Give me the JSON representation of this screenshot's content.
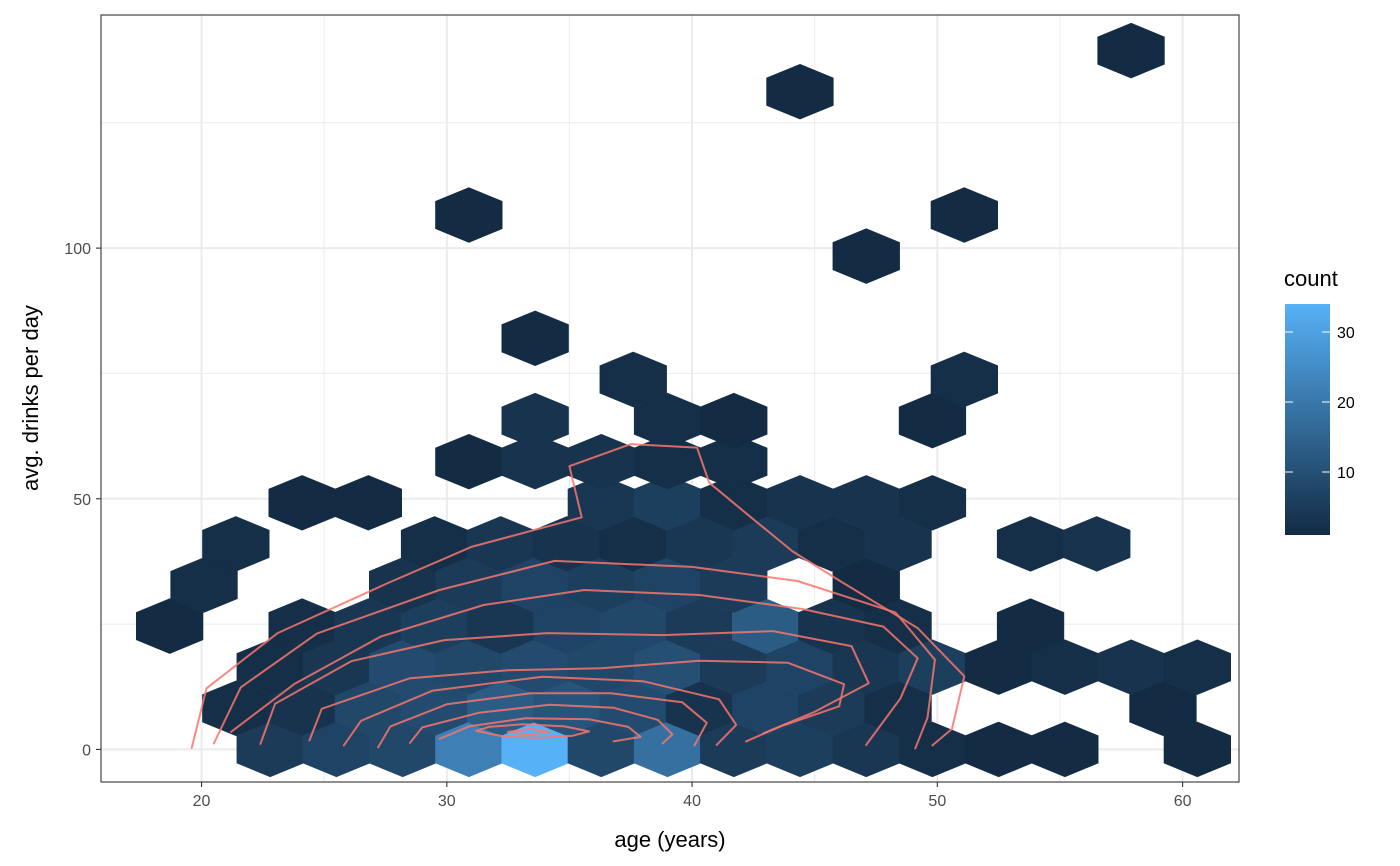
{
  "colors": {
    "background": "#ffffff",
    "grid": "#ebebeb",
    "panel_border": "#333333",
    "tick_text": "#4d4d4d",
    "contour": "#f8766d",
    "gradient_low": "#132b43",
    "gradient_high": "#56b1f7"
  },
  "chart_data": {
    "type": "hexbin",
    "title": "",
    "xlabel": "age (years)",
    "ylabel": "avg. drinks per day",
    "xlim": [
      15.9,
      62.3
    ],
    "ylim": [
      -6.5,
      146.5
    ],
    "x_ticks": [
      20,
      30,
      40,
      50,
      60
    ],
    "y_ticks": [
      0,
      50,
      100
    ],
    "grid": true,
    "hex_dx": 2.72,
    "hex_dy": 8.2,
    "legend": {
      "title": "count",
      "position": "right",
      "ticks": [
        10,
        20,
        30
      ],
      "min": 1,
      "max": 34
    },
    "bins": [
      {
        "x": 22.8,
        "y": 0,
        "count": 5
      },
      {
        "x": 25.5,
        "y": 0,
        "count": 7
      },
      {
        "x": 28.2,
        "y": 0,
        "count": 8
      },
      {
        "x": 30.9,
        "y": 0,
        "count": 22
      },
      {
        "x": 33.6,
        "y": 0,
        "count": 34
      },
      {
        "x": 36.3,
        "y": 0,
        "count": 8
      },
      {
        "x": 39.0,
        "y": 0,
        "count": 18
      },
      {
        "x": 41.7,
        "y": 0,
        "count": 5
      },
      {
        "x": 44.4,
        "y": 0,
        "count": 6
      },
      {
        "x": 47.1,
        "y": 0,
        "count": 4
      },
      {
        "x": 49.8,
        "y": 0,
        "count": 2
      },
      {
        "x": 52.5,
        "y": 0,
        "count": 1
      },
      {
        "x": 55.2,
        "y": 0,
        "count": 1
      },
      {
        "x": 60.6,
        "y": 0,
        "count": 1
      },
      {
        "x": 21.4,
        "y": 8.2,
        "count": 2
      },
      {
        "x": 24.1,
        "y": 8.2,
        "count": 3
      },
      {
        "x": 26.8,
        "y": 8.2,
        "count": 8
      },
      {
        "x": 29.5,
        "y": 8.2,
        "count": 9
      },
      {
        "x": 32.2,
        "y": 8.2,
        "count": 13
      },
      {
        "x": 34.9,
        "y": 8.2,
        "count": 11
      },
      {
        "x": 37.6,
        "y": 8.2,
        "count": 9
      },
      {
        "x": 40.3,
        "y": 8.2,
        "count": 3
      },
      {
        "x": 43.0,
        "y": 8.2,
        "count": 7
      },
      {
        "x": 45.7,
        "y": 8.2,
        "count": 5
      },
      {
        "x": 48.4,
        "y": 8.2,
        "count": 2
      },
      {
        "x": 59.2,
        "y": 8.2,
        "count": 1
      },
      {
        "x": 22.8,
        "y": 16.4,
        "count": 2
      },
      {
        "x": 25.5,
        "y": 16.4,
        "count": 4
      },
      {
        "x": 28.2,
        "y": 16.4,
        "count": 9
      },
      {
        "x": 30.9,
        "y": 16.4,
        "count": 8
      },
      {
        "x": 33.6,
        "y": 16.4,
        "count": 9
      },
      {
        "x": 36.3,
        "y": 16.4,
        "count": 8
      },
      {
        "x": 39.0,
        "y": 16.4,
        "count": 10
      },
      {
        "x": 41.7,
        "y": 16.4,
        "count": 5
      },
      {
        "x": 44.4,
        "y": 16.4,
        "count": 7
      },
      {
        "x": 47.1,
        "y": 16.4,
        "count": 4
      },
      {
        "x": 49.8,
        "y": 16.4,
        "count": 6
      },
      {
        "x": 52.5,
        "y": 16.4,
        "count": 1
      },
      {
        "x": 55.2,
        "y": 16.4,
        "count": 2
      },
      {
        "x": 57.9,
        "y": 16.4,
        "count": 3
      },
      {
        "x": 60.6,
        "y": 16.4,
        "count": 2
      },
      {
        "x": 18.7,
        "y": 24.6,
        "count": 1
      },
      {
        "x": 24.1,
        "y": 24.6,
        "count": 2
      },
      {
        "x": 26.8,
        "y": 24.6,
        "count": 4
      },
      {
        "x": 29.5,
        "y": 24.6,
        "count": 6
      },
      {
        "x": 32.2,
        "y": 24.6,
        "count": 4
      },
      {
        "x": 34.9,
        "y": 24.6,
        "count": 7
      },
      {
        "x": 37.6,
        "y": 24.6,
        "count": 8
      },
      {
        "x": 40.3,
        "y": 24.6,
        "count": 5
      },
      {
        "x": 43.0,
        "y": 24.6,
        "count": 13
      },
      {
        "x": 45.7,
        "y": 24.6,
        "count": 3
      },
      {
        "x": 48.4,
        "y": 24.6,
        "count": 2
      },
      {
        "x": 53.8,
        "y": 24.6,
        "count": 1
      },
      {
        "x": 20.1,
        "y": 32.8,
        "count": 2
      },
      {
        "x": 28.2,
        "y": 32.8,
        "count": 3
      },
      {
        "x": 30.9,
        "y": 32.8,
        "count": 5
      },
      {
        "x": 33.6,
        "y": 32.8,
        "count": 7
      },
      {
        "x": 36.3,
        "y": 32.8,
        "count": 6
      },
      {
        "x": 39.0,
        "y": 32.8,
        "count": 7
      },
      {
        "x": 41.7,
        "y": 32.8,
        "count": 5
      },
      {
        "x": 47.1,
        "y": 32.8,
        "count": 1
      },
      {
        "x": 21.4,
        "y": 41.0,
        "count": 2
      },
      {
        "x": 29.5,
        "y": 41.0,
        "count": 2
      },
      {
        "x": 32.2,
        "y": 41.0,
        "count": 4
      },
      {
        "x": 34.9,
        "y": 41.0,
        "count": 3
      },
      {
        "x": 37.6,
        "y": 41.0,
        "count": 2
      },
      {
        "x": 40.3,
        "y": 41.0,
        "count": 4
      },
      {
        "x": 43.0,
        "y": 41.0,
        "count": 5
      },
      {
        "x": 45.7,
        "y": 41.0,
        "count": 2
      },
      {
        "x": 48.4,
        "y": 41.0,
        "count": 3
      },
      {
        "x": 53.8,
        "y": 41.0,
        "count": 2
      },
      {
        "x": 56.5,
        "y": 41.0,
        "count": 3
      },
      {
        "x": 24.1,
        "y": 49.2,
        "count": 1
      },
      {
        "x": 26.8,
        "y": 49.2,
        "count": 1
      },
      {
        "x": 36.3,
        "y": 49.2,
        "count": 4
      },
      {
        "x": 39.0,
        "y": 49.2,
        "count": 6
      },
      {
        "x": 41.7,
        "y": 49.2,
        "count": 2
      },
      {
        "x": 44.4,
        "y": 49.2,
        "count": 3
      },
      {
        "x": 47.1,
        "y": 49.2,
        "count": 3
      },
      {
        "x": 49.8,
        "y": 49.2,
        "count": 2
      },
      {
        "x": 30.9,
        "y": 57.4,
        "count": 1
      },
      {
        "x": 33.6,
        "y": 57.4,
        "count": 3
      },
      {
        "x": 36.3,
        "y": 57.4,
        "count": 3
      },
      {
        "x": 39.0,
        "y": 57.4,
        "count": 2
      },
      {
        "x": 41.7,
        "y": 57.4,
        "count": 2
      },
      {
        "x": 33.6,
        "y": 65.6,
        "count": 3
      },
      {
        "x": 39.0,
        "y": 65.6,
        "count": 2
      },
      {
        "x": 41.7,
        "y": 65.6,
        "count": 1
      },
      {
        "x": 49.8,
        "y": 65.6,
        "count": 1
      },
      {
        "x": 37.6,
        "y": 73.8,
        "count": 2
      },
      {
        "x": 51.1,
        "y": 73.8,
        "count": 2
      },
      {
        "x": 33.6,
        "y": 82.0,
        "count": 1
      },
      {
        "x": 47.1,
        "y": 98.4,
        "count": 1
      },
      {
        "x": 30.9,
        "y": 106.6,
        "count": 1
      },
      {
        "x": 51.1,
        "y": 106.6,
        "count": 1
      },
      {
        "x": 44.4,
        "y": 131.2,
        "count": 1
      },
      {
        "x": 57.9,
        "y": 139.4,
        "count": 1
      }
    ],
    "contours": [
      {
        "points": [
          [
            32.5,
            3.5
          ],
          [
            33.4,
            2.9
          ],
          [
            34.2,
            3.5
          ],
          [
            33.4,
            4.1
          ],
          [
            32.5,
            3.5
          ]
        ]
      },
      {
        "points": [
          [
            31.2,
            3.7
          ],
          [
            32.3,
            2.6
          ],
          [
            33.7,
            2.3
          ],
          [
            35.1,
            2.7
          ],
          [
            35.8,
            3.6
          ],
          [
            34.8,
            4.6
          ],
          [
            33.1,
            5.0
          ],
          [
            31.7,
            4.5
          ],
          [
            31.2,
            3.7
          ]
        ]
      },
      {
        "points": [
          [
            29.7,
            2.1
          ],
          [
            30.9,
            4.6
          ],
          [
            33.2,
            6.2
          ],
          [
            35.8,
            6.0
          ],
          [
            37.4,
            4.5
          ],
          [
            37.9,
            2.5
          ],
          [
            36.8,
            1.6
          ]
        ]
      },
      {
        "points": [
          [
            28.5,
            1.3
          ],
          [
            29.0,
            4.4
          ],
          [
            31.3,
            7.3
          ],
          [
            34.2,
            8.9
          ],
          [
            36.8,
            8.3
          ],
          [
            38.6,
            5.9
          ],
          [
            39.2,
            3.0
          ],
          [
            38.8,
            1.2
          ]
        ]
      },
      {
        "points": [
          [
            27.2,
            0.4
          ],
          [
            27.7,
            4.6
          ],
          [
            30.0,
            9.0
          ],
          [
            33.4,
            11.2
          ],
          [
            36.7,
            11.2
          ],
          [
            39.6,
            9.4
          ],
          [
            40.6,
            5.3
          ],
          [
            40.1,
            0.8
          ]
        ]
      },
      {
        "points": [
          [
            25.8,
            0.8
          ],
          [
            26.5,
            5.7
          ],
          [
            29.4,
            11.7
          ],
          [
            33.9,
            14.5
          ],
          [
            38.0,
            13.6
          ],
          [
            41.1,
            10.0
          ],
          [
            41.8,
            4.9
          ],
          [
            41.0,
            0.9
          ]
        ]
      },
      {
        "points": [
          [
            24.4,
            1.8
          ],
          [
            24.9,
            8.1
          ],
          [
            28.5,
            14.2
          ],
          [
            32.5,
            15.8
          ],
          [
            36.3,
            16.2
          ],
          [
            40.3,
            17.7
          ],
          [
            43.9,
            17.3
          ],
          [
            46.2,
            13.0
          ],
          [
            46.0,
            8.6
          ],
          [
            43.6,
            4.6
          ],
          [
            42.2,
            1.6
          ]
        ]
      },
      {
        "points": [
          [
            22.4,
            1.1
          ],
          [
            23.0,
            9.1
          ],
          [
            26.1,
            17.6
          ],
          [
            29.9,
            21.8
          ],
          [
            34.1,
            23.2
          ],
          [
            38.8,
            22.8
          ],
          [
            43.3,
            23.6
          ],
          [
            46.5,
            20.6
          ],
          [
            47.2,
            13.2
          ],
          [
            45.0,
            7.5
          ],
          [
            42.9,
            3.2
          ]
        ]
      },
      {
        "points": [
          [
            21.2,
            3.5
          ],
          [
            23.8,
            13.1
          ],
          [
            27.3,
            22.5
          ],
          [
            31.5,
            28.8
          ],
          [
            35.6,
            31.8
          ],
          [
            40.3,
            30.8
          ],
          [
            44.5,
            28.0
          ],
          [
            47.8,
            24.5
          ],
          [
            49.2,
            18.2
          ],
          [
            48.5,
            10.2
          ],
          [
            47.1,
            0.9
          ]
        ]
      },
      {
        "points": [
          [
            20.5,
            1.2
          ],
          [
            21.6,
            12.4
          ],
          [
            24.7,
            23.1
          ],
          [
            29.7,
            31.8
          ],
          [
            34.4,
            37.6
          ],
          [
            40.0,
            36.4
          ],
          [
            44.3,
            33.6
          ],
          [
            48.3,
            27.3
          ],
          [
            49.9,
            17.9
          ],
          [
            49.6,
            6.3
          ],
          [
            49.1,
            0.2
          ]
        ]
      },
      {
        "points": [
          [
            19.6,
            0.3
          ],
          [
            20.2,
            12.2
          ],
          [
            23.1,
            23.2
          ],
          [
            27.6,
            33.2
          ],
          [
            31.0,
            40.4
          ],
          [
            35.5,
            46.3
          ],
          [
            35.0,
            56.5
          ],
          [
            37.5,
            60.9
          ],
          [
            40.2,
            60.2
          ],
          [
            40.7,
            53.2
          ],
          [
            42.3,
            46.7
          ],
          [
            44.1,
            39.5
          ],
          [
            46.1,
            33.4
          ],
          [
            49.2,
            24.2
          ],
          [
            51.1,
            14.6
          ],
          [
            50.6,
            4.1
          ],
          [
            49.8,
            0.8
          ]
        ]
      }
    ]
  }
}
